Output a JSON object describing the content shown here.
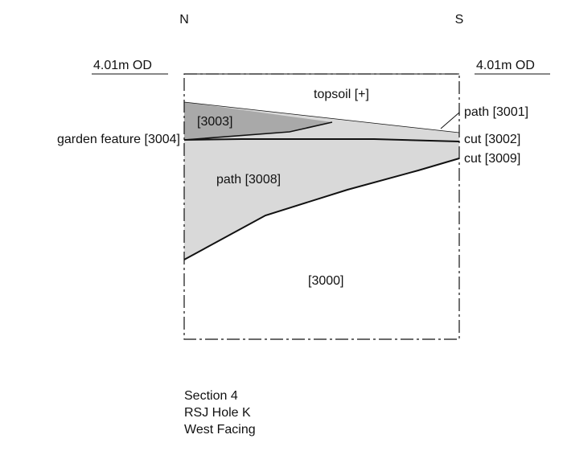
{
  "compass": {
    "north": "N",
    "south": "S"
  },
  "datum": {
    "left": "4.01m OD",
    "right": "4.01m OD"
  },
  "layers": {
    "topsoil": "topsoil [+]",
    "context_3003": "[3003]",
    "path_3001": "path [3001]",
    "garden_feature_3004": "garden feature [3004]",
    "cut_3002": "cut [3002]",
    "cut_3009": "cut [3009]",
    "path_3008": "path [3008]",
    "natural_3000": "[3000]"
  },
  "caption": {
    "line1": "Section 4",
    "line2": "RSJ Hole K",
    "line3": "West Facing"
  },
  "colors": {
    "light_fill": "#d9d9d9",
    "dark_fill": "#a9a9a9",
    "line": "#111111"
  }
}
